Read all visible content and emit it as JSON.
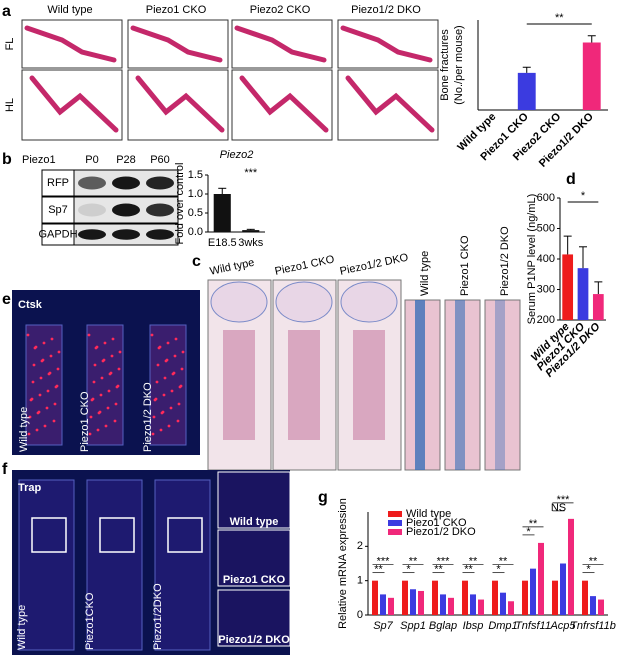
{
  "figure": {
    "panels": [
      "a",
      "b",
      "c",
      "d",
      "e",
      "f",
      "g"
    ],
    "a": {
      "columns": [
        "Wild type",
        "Piezo1 CKO",
        "Piezo2 CKO",
        "Piezo1/2 DKO"
      ],
      "rows": [
        "FL",
        "HL"
      ]
    },
    "b": {
      "gene": "Piezo1",
      "timepoints": [
        "P0",
        "P28",
        "P60"
      ],
      "bands": [
        "RFP",
        "Sp7",
        "GAPDH"
      ]
    },
    "c": {
      "columns": [
        "Wild type",
        "Piezo1 CKO",
        "Piezo1/2 DKO"
      ],
      "insets": [
        "Wild type",
        "Piezo1 CKO",
        "Piezo1/2 DKO"
      ]
    },
    "e": {
      "stain": "Ctsk",
      "columns": [
        "Wild type",
        "Piezo1 CKO",
        "Piezo1/2 DKO"
      ]
    },
    "f": {
      "stain": "Trap",
      "columns": [
        "Wild type",
        "Piezo1CKO",
        "Piezo1/2DKO"
      ],
      "insets": [
        "Wild type",
        "Piezo1 CKO",
        "Piezo1/2 DKO"
      ]
    }
  },
  "chart_data": [
    {
      "type": "bar",
      "ylabel": "Bone fractures\n(No./per mouse)",
      "categories": [
        "Wild type",
        "Piezo1 CKO",
        "Piezo2 CKO",
        "Piezo1/2 DKO"
      ],
      "values": [
        0,
        3.3,
        0,
        6
      ],
      "errors": [
        0,
        0.5,
        0,
        0.6
      ],
      "colors": [
        "#222222",
        "#3b3be0",
        "#888888",
        "#f0287a"
      ],
      "ylim": [
        0,
        8
      ],
      "annotations": [
        "**"
      ]
    },
    {
      "type": "bar",
      "title": "Piezo2",
      "ylabel": "Fold over control",
      "categories": [
        "E18.5",
        "3wks"
      ],
      "values": [
        1.0,
        0.05
      ],
      "errors": [
        0.15,
        0.02
      ],
      "colors": [
        "#111111",
        "#111111"
      ],
      "ylim": [
        0,
        1.5
      ],
      "yticks": [
        {
          "value": 0,
          "label": "0.0"
        },
        {
          "value": 0.5,
          "label": "0.5"
        },
        {
          "value": 1,
          "label": "1.0"
        },
        {
          "value": 1.5,
          "label": "1.5"
        }
      ],
      "annotations": [
        "***"
      ]
    },
    {
      "type": "bar",
      "ylabel": "Serum P1NP level (ng/mL)",
      "categories": [
        "Wild type",
        "Piezo1 CKO",
        "Piezo1/2 DKO"
      ],
      "values": [
        415,
        370,
        285
      ],
      "errors": [
        60,
        70,
        40
      ],
      "colors": [
        "#ee1c1c",
        "#3b3be0",
        "#f0287a"
      ],
      "ylim": [
        200,
        600
      ],
      "yticks": [
        200,
        300,
        400,
        500,
        600
      ],
      "annotations": [
        "*"
      ]
    },
    {
      "type": "bar",
      "ylabel": "Relative mRNA expression",
      "categories": [
        "Sp7",
        "Spp1",
        "Bglap",
        "Ibsp",
        "Dmp1",
        "Tnfsf11",
        "Acp5",
        "Tnfrsf11b"
      ],
      "series": [
        {
          "name": "Wild type",
          "color": "#ee1c1c",
          "values": [
            1,
            1,
            1,
            1,
            1,
            1,
            1,
            1
          ]
        },
        {
          "name": "Piezo1 CKO",
          "color": "#3b3be0",
          "values": [
            0.6,
            0.75,
            0.6,
            0.6,
            0.65,
            1.35,
            1.5,
            0.55
          ]
        },
        {
          "name": "Piezo1/2 DKO",
          "color": "#f0287a",
          "values": [
            0.5,
            0.7,
            0.5,
            0.45,
            0.4,
            2.1,
            2.8,
            0.45
          ]
        }
      ],
      "ylim": [
        0,
        3
      ],
      "yticks": [
        0,
        1,
        2
      ],
      "annotations": [
        [
          "**",
          "***"
        ],
        [
          "*",
          "**"
        ],
        [
          "**",
          "***"
        ],
        [
          "**",
          "**"
        ],
        [
          "*",
          "**"
        ],
        [
          "*",
          "**"
        ],
        [
          "NS",
          "***"
        ],
        [
          "*",
          "**"
        ]
      ]
    }
  ]
}
